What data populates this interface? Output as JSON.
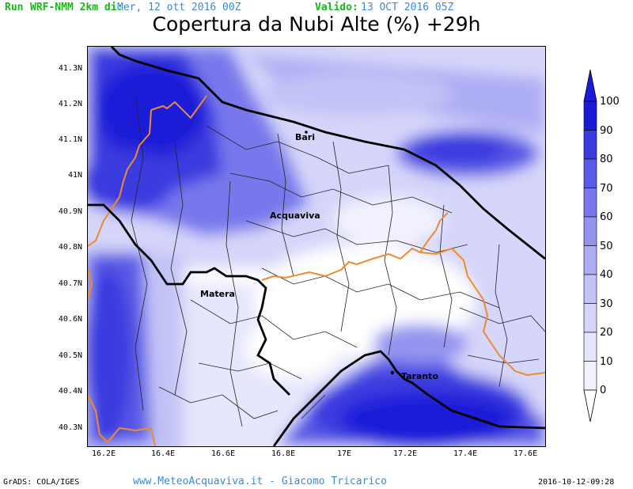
{
  "header": {
    "run": "Run",
    "model": "WRF-NMM 2km di:",
    "init": "Mer, 12 ott 2016 00Z",
    "valid_label": "Valido:",
    "valid": "13 OCT 2016 05Z"
  },
  "title": "Copertura da Nubi Alte (%) +29h",
  "cities": [
    {
      "name": "Bari"
    },
    {
      "name": "Acquaviva"
    },
    {
      "name": "Matera"
    },
    {
      "name": "Taranto"
    }
  ],
  "lat_labels": [
    "41.3N",
    "41.2N",
    "41.1N",
    "41N",
    "40.9N",
    "40.8N",
    "40.7N",
    "40.6N",
    "40.5N",
    "40.4N",
    "40.3N"
  ],
  "lon_labels": [
    "16.2E",
    "16.4E",
    "16.6E",
    "16.8E",
    "17E",
    "17.2E",
    "17.4E",
    "17.6E"
  ],
  "colorbar": {
    "labels": [
      "100",
      "90",
      "80",
      "70",
      "60",
      "50",
      "40",
      "30",
      "20",
      "10",
      "0"
    ],
    "colors": [
      "#1a1ad8",
      "#3b3be0",
      "#5a5ae6",
      "#7878ec",
      "#9494f0",
      "#adadf4",
      "#c3c3f7",
      "#d6d6fa",
      "#e6e6fc",
      "#f2f2fe",
      "#ffffff"
    ]
  },
  "footer": {
    "left": "GrADS: COLA/IGES",
    "mid": "www.MeteoAcquaviva.it - Giacomo Tricarico",
    "right": "2016-10-12-09:28"
  }
}
